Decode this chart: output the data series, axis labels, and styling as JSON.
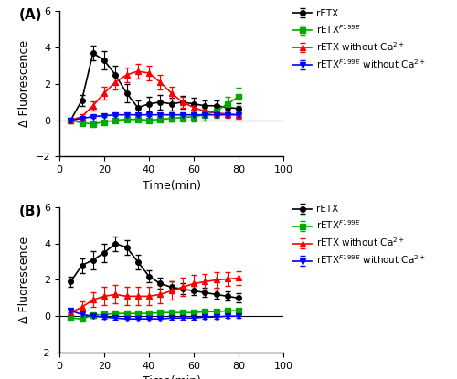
{
  "time": [
    5,
    10,
    15,
    20,
    25,
    30,
    35,
    40,
    45,
    50,
    55,
    60,
    65,
    70,
    75,
    80
  ],
  "A_black_y": [
    0.0,
    1.1,
    3.7,
    3.3,
    2.5,
    1.5,
    0.7,
    0.9,
    1.0,
    0.9,
    1.0,
    0.9,
    0.8,
    0.8,
    0.7,
    0.65
  ],
  "A_black_e": [
    0.0,
    0.3,
    0.4,
    0.5,
    0.5,
    0.5,
    0.4,
    0.4,
    0.4,
    0.35,
    0.35,
    0.35,
    0.3,
    0.3,
    0.3,
    0.3
  ],
  "A_green_y": [
    0.0,
    -0.15,
    -0.2,
    -0.1,
    0.0,
    0.05,
    0.05,
    0.0,
    0.05,
    0.1,
    0.15,
    0.2,
    0.3,
    0.5,
    0.9,
    1.3
  ],
  "A_green_e": [
    0.05,
    0.1,
    0.1,
    0.1,
    0.1,
    0.1,
    0.1,
    0.1,
    0.1,
    0.15,
    0.2,
    0.25,
    0.3,
    0.35,
    0.4,
    0.5
  ],
  "A_red_y": [
    0.0,
    0.2,
    0.8,
    1.5,
    2.1,
    2.5,
    2.7,
    2.6,
    2.1,
    1.5,
    1.0,
    0.7,
    0.5,
    0.4,
    0.35,
    0.3
  ],
  "A_red_e": [
    0.05,
    0.15,
    0.25,
    0.35,
    0.4,
    0.4,
    0.4,
    0.4,
    0.4,
    0.35,
    0.3,
    0.25,
    0.2,
    0.2,
    0.2,
    0.2
  ],
  "A_blue_y": [
    0.0,
    0.1,
    0.2,
    0.25,
    0.3,
    0.3,
    0.3,
    0.3,
    0.3,
    0.3,
    0.3,
    0.3,
    0.3,
    0.3,
    0.3,
    0.3
  ],
  "A_blue_e": [
    0.05,
    0.05,
    0.05,
    0.05,
    0.05,
    0.05,
    0.05,
    0.05,
    0.05,
    0.05,
    0.05,
    0.05,
    0.05,
    0.05,
    0.05,
    0.05
  ],
  "B_black_y": [
    1.9,
    2.8,
    3.1,
    3.5,
    4.0,
    3.8,
    3.0,
    2.2,
    1.8,
    1.6,
    1.5,
    1.4,
    1.3,
    1.2,
    1.1,
    1.0
  ],
  "B_black_e": [
    0.3,
    0.4,
    0.5,
    0.5,
    0.4,
    0.4,
    0.4,
    0.35,
    0.3,
    0.3,
    0.3,
    0.25,
    0.25,
    0.25,
    0.25,
    0.25
  ],
  "B_green_y": [
    -0.1,
    -0.15,
    0.05,
    0.1,
    0.15,
    0.15,
    0.15,
    0.15,
    0.2,
    0.2,
    0.2,
    0.2,
    0.25,
    0.25,
    0.3,
    0.3
  ],
  "B_green_e": [
    0.05,
    0.1,
    0.1,
    0.1,
    0.1,
    0.1,
    0.1,
    0.1,
    0.1,
    0.1,
    0.1,
    0.1,
    0.1,
    0.1,
    0.1,
    0.1
  ],
  "B_red_y": [
    0.2,
    0.5,
    0.9,
    1.1,
    1.2,
    1.1,
    1.1,
    1.1,
    1.2,
    1.4,
    1.6,
    1.8,
    1.9,
    2.0,
    2.05,
    2.1
  ],
  "B_red_e": [
    0.15,
    0.3,
    0.4,
    0.5,
    0.5,
    0.5,
    0.5,
    0.5,
    0.5,
    0.5,
    0.5,
    0.5,
    0.45,
    0.45,
    0.4,
    0.4
  ],
  "B_blue_y": [
    0.3,
    0.1,
    0.0,
    -0.05,
    -0.1,
    -0.15,
    -0.15,
    -0.15,
    -0.15,
    -0.1,
    -0.1,
    -0.1,
    -0.05,
    -0.05,
    0.0,
    0.0
  ],
  "B_blue_e": [
    0.1,
    0.1,
    0.1,
    0.1,
    0.1,
    0.1,
    0.1,
    0.1,
    0.1,
    0.1,
    0.1,
    0.1,
    0.1,
    0.1,
    0.1,
    0.1
  ],
  "panel_labels": [
    "(A)",
    "(B)"
  ],
  "ylabel": "Δ Fluorescence",
  "xlabel": "Time(min)",
  "ylim": [
    -2,
    6
  ],
  "xlim": [
    0,
    100
  ],
  "xticks": [
    0,
    20,
    40,
    60,
    80,
    100
  ],
  "yticks": [
    -2,
    0,
    2,
    4,
    6
  ],
  "legend_labels": [
    "rETX",
    "rETX$^{F199E}$",
    "rETX without Ca$^{2+}$",
    "rETX$^{F199E}$ without Ca$^{2+}$"
  ],
  "colors": [
    "black",
    "green",
    "red",
    "blue"
  ],
  "markers": [
    "o",
    "s",
    "^",
    "v"
  ],
  "black_color": "#000000",
  "green_color": "#00aa00",
  "red_color": "#ff0000",
  "blue_color": "#0000ff"
}
